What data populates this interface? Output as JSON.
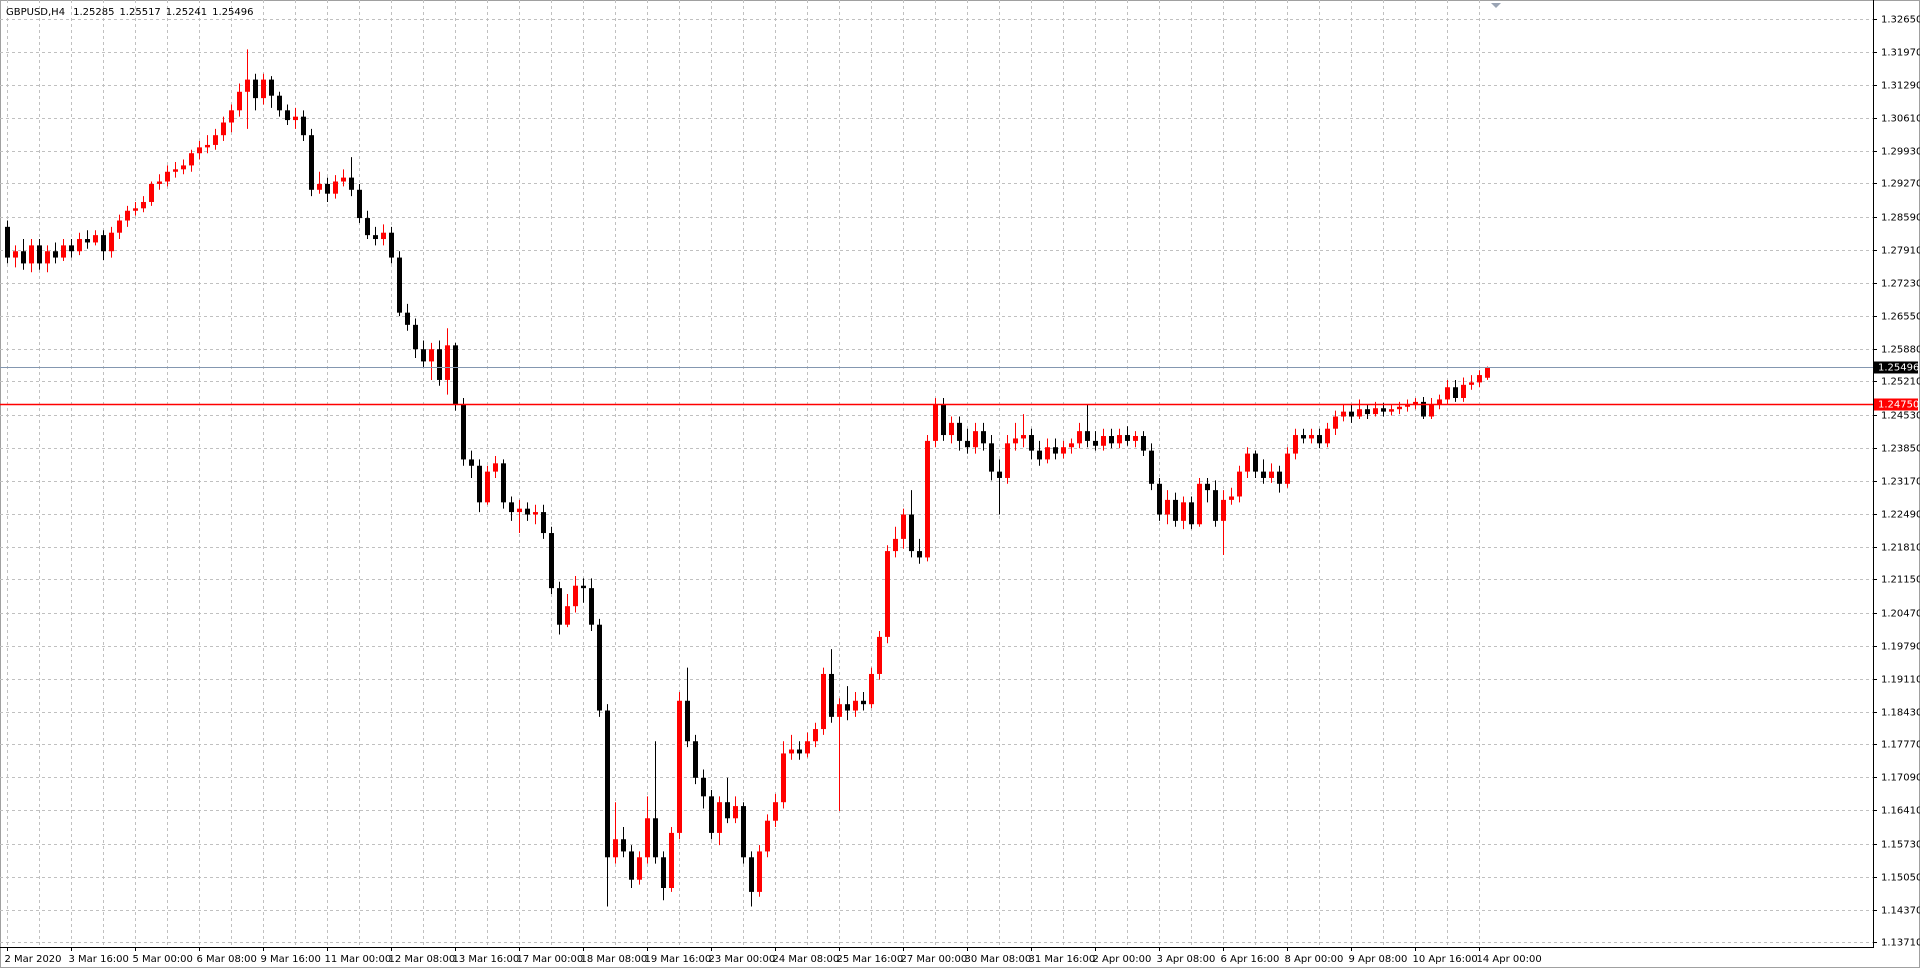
{
  "chart_data": {
    "type": "candlestick",
    "title": "GBPUSD,H4",
    "up_color": "#ff0000",
    "down_color": "#000000",
    "bid_line_color": "#8497b0",
    "grid": true,
    "ylim": [
      1.1361,
      1.3293
    ],
    "yticks": [
      {
        "value": 1.3265,
        "label": "1.32650"
      },
      {
        "value": 1.3197,
        "label": "1.31970"
      },
      {
        "value": 1.3129,
        "label": "1.31290"
      },
      {
        "value": 1.3061,
        "label": "1.30610"
      },
      {
        "value": 1.2993,
        "label": "1.29930"
      },
      {
        "value": 1.2927,
        "label": "1.29270"
      },
      {
        "value": 1.2859,
        "label": "1.28590"
      },
      {
        "value": 1.2791,
        "label": "1.27910"
      },
      {
        "value": 1.2723,
        "label": "1.27230"
      },
      {
        "value": 1.2655,
        "label": "1.26550"
      },
      {
        "value": 1.2588,
        "label": "1.25880"
      },
      {
        "value": 1.2521,
        "label": "1.25210"
      },
      {
        "value": 1.2453,
        "label": "1.24530"
      },
      {
        "value": 1.2385,
        "label": "1.23850"
      },
      {
        "value": 1.2317,
        "label": "1.23170"
      },
      {
        "value": 1.2249,
        "label": "1.22490"
      },
      {
        "value": 1.2181,
        "label": "1.21810"
      },
      {
        "value": 1.2115,
        "label": "1.21150"
      },
      {
        "value": 1.2047,
        "label": "1.20470"
      },
      {
        "value": 1.1979,
        "label": "1.19790"
      },
      {
        "value": 1.1911,
        "label": "1.19110"
      },
      {
        "value": 1.1843,
        "label": "1.18430"
      },
      {
        "value": 1.1777,
        "label": "1.17770"
      },
      {
        "value": 1.1709,
        "label": "1.17090"
      },
      {
        "value": 1.1641,
        "label": "1.16410"
      },
      {
        "value": 1.1573,
        "label": "1.15730"
      },
      {
        "value": 1.1505,
        "label": "1.15050"
      },
      {
        "value": 1.1437,
        "label": "1.14370"
      },
      {
        "value": 1.1371,
        "label": "1.13710"
      }
    ],
    "hline": {
      "value": 1.2475,
      "label": "1.24750",
      "color": "#ff0000"
    },
    "categories": [
      "2 Mar 2020",
      null,
      null,
      null,
      null,
      null,
      null,
      null,
      "3 Mar 16:00",
      null,
      null,
      null,
      null,
      null,
      null,
      null,
      "5 Mar 00:00",
      null,
      null,
      null,
      null,
      null,
      null,
      null,
      "6 Mar 08:00",
      null,
      null,
      null,
      null,
      null,
      null,
      null,
      "9 Mar 16:00",
      null,
      null,
      null,
      null,
      null,
      null,
      null,
      "11 Mar 00:00",
      null,
      null,
      null,
      null,
      null,
      null,
      null,
      "12 Mar 08:00",
      null,
      null,
      null,
      null,
      null,
      null,
      null,
      "13 Mar 16:00",
      null,
      null,
      null,
      null,
      null,
      null,
      null,
      "17 Mar 00:00",
      null,
      null,
      null,
      null,
      null,
      null,
      null,
      "18 Mar 08:00",
      null,
      null,
      null,
      null,
      null,
      null,
      null,
      "19 Mar 16:00",
      null,
      null,
      null,
      null,
      null,
      null,
      null,
      "23 Mar 00:00",
      null,
      null,
      null,
      null,
      null,
      null,
      null,
      "24 Mar 08:00",
      null,
      null,
      null,
      null,
      null,
      null,
      null,
      "25 Mar 16:00",
      null,
      null,
      null,
      null,
      null,
      null,
      null,
      "27 Mar 00:00",
      null,
      null,
      null,
      null,
      null,
      null,
      null,
      "30 Mar 08:00",
      null,
      null,
      null,
      null,
      null,
      null,
      null,
      "31 Mar 16:00",
      null,
      null,
      null,
      null,
      null,
      null,
      null,
      "2 Apr 00:00",
      null,
      null,
      null,
      null,
      null,
      null,
      null,
      "3 Apr 08:00",
      null,
      null,
      null,
      null,
      null,
      null,
      null,
      "6 Apr 16:00",
      null,
      null,
      null,
      null,
      null,
      null,
      null,
      "8 Apr 00:00",
      null,
      null,
      null,
      null,
      null,
      null,
      null,
      "9 Apr 08:00",
      null,
      null,
      null,
      null,
      null,
      null,
      null,
      "10 Apr 16:00",
      null,
      null,
      null,
      null,
      null,
      null,
      null,
      "14 Apr 00:00",
      null
    ],
    "ohlc": [
      [
        1.2838,
        1.2851,
        1.2763,
        1.2775
      ],
      [
        1.2775,
        1.28,
        1.2755,
        1.2788
      ],
      [
        1.2788,
        1.2813,
        1.275,
        1.2763
      ],
      [
        1.2763,
        1.2813,
        1.2745,
        1.28
      ],
      [
        1.28,
        1.2813,
        1.275,
        1.2763
      ],
      [
        1.2763,
        1.28,
        1.2745,
        1.2788
      ],
      [
        1.2788,
        1.2806,
        1.2763,
        1.2775
      ],
      [
        1.2775,
        1.2813,
        1.2768,
        1.28
      ],
      [
        1.28,
        1.2813,
        1.2775,
        1.2788
      ],
      [
        1.2788,
        1.2826,
        1.278,
        1.2813
      ],
      [
        1.2813,
        1.2831,
        1.2793,
        1.2806
      ],
      [
        1.2806,
        1.2831,
        1.28,
        1.2821
      ],
      [
        1.2821,
        1.2831,
        1.277,
        1.2788
      ],
      [
        1.2788,
        1.2838,
        1.2775,
        1.2826
      ],
      [
        1.2826,
        1.2863,
        1.2813,
        1.2851
      ],
      [
        1.2851,
        1.2881,
        1.2838,
        1.2871
      ],
      [
        1.2871,
        1.2889,
        1.2861,
        1.2876
      ],
      [
        1.2876,
        1.2901,
        1.2868,
        1.2889
      ],
      [
        1.2889,
        1.2931,
        1.2881,
        1.2926
      ],
      [
        1.2926,
        1.2946,
        1.2914,
        1.2931
      ],
      [
        1.2931,
        1.2964,
        1.2921,
        1.2951
      ],
      [
        1.2951,
        1.2971,
        1.2939,
        1.2956
      ],
      [
        1.2956,
        1.2976,
        1.2946,
        1.2964
      ],
      [
        1.2964,
        1.2996,
        1.2951,
        1.2989
      ],
      [
        1.2989,
        1.3014,
        1.2976,
        1.3001
      ],
      [
        1.3001,
        1.3026,
        1.2989,
        1.3006
      ],
      [
        1.3006,
        1.3039,
        1.2996,
        1.3026
      ],
      [
        1.3026,
        1.3064,
        1.3014,
        1.3052
      ],
      [
        1.3052,
        1.3089,
        1.3032,
        1.3077
      ],
      [
        1.3077,
        1.3132,
        1.3064,
        1.3115
      ],
      [
        1.3115,
        1.3202,
        1.3039,
        1.314
      ],
      [
        1.314,
        1.3152,
        1.3077,
        1.3102
      ],
      [
        1.3102,
        1.3152,
        1.3089,
        1.314
      ],
      [
        1.314,
        1.3147,
        1.3082,
        1.3107
      ],
      [
        1.3107,
        1.3115,
        1.3064,
        1.3077
      ],
      [
        1.3077,
        1.3089,
        1.3047,
        1.3057
      ],
      [
        1.3057,
        1.3082,
        1.3039,
        1.3064
      ],
      [
        1.3064,
        1.3077,
        1.3014,
        1.3026
      ],
      [
        1.3026,
        1.3039,
        1.2901,
        1.2914
      ],
      [
        1.2914,
        1.2951,
        1.2906,
        1.2926
      ],
      [
        1.2926,
        1.2939,
        1.2889,
        1.2906
      ],
      [
        1.2906,
        1.2944,
        1.2896,
        1.2931
      ],
      [
        1.2931,
        1.2956,
        1.2921,
        1.2939
      ],
      [
        1.2939,
        1.2981,
        1.2901,
        1.2914
      ],
      [
        1.2914,
        1.2926,
        1.2846,
        1.2856
      ],
      [
        1.2856,
        1.2871,
        1.2813,
        1.2821
      ],
      [
        1.2821,
        1.2838,
        1.28,
        1.2813
      ],
      [
        1.2813,
        1.2843,
        1.28,
        1.2826
      ],
      [
        1.2826,
        1.2838,
        1.2763,
        1.2775
      ],
      [
        1.2775,
        1.2788,
        1.2655,
        1.2662
      ],
      [
        1.2662,
        1.268,
        1.2625,
        1.2637
      ],
      [
        1.2637,
        1.265,
        1.2569,
        1.2587
      ],
      [
        1.2587,
        1.2605,
        1.2549,
        1.2562
      ],
      [
        1.2562,
        1.26,
        1.2524,
        1.2587
      ],
      [
        1.2587,
        1.2605,
        1.2512,
        1.2524
      ],
      [
        1.2524,
        1.263,
        1.2494,
        1.2595
      ],
      [
        1.2595,
        1.26,
        1.2461,
        1.2474
      ],
      [
        1.2474,
        1.2487,
        1.2348,
        1.2361
      ],
      [
        1.2361,
        1.2379,
        1.2323,
        1.2348
      ],
      [
        1.2348,
        1.2361,
        1.2253,
        1.2273
      ],
      [
        1.2273,
        1.2348,
        1.2268,
        1.2336
      ],
      [
        1.2336,
        1.2368,
        1.2323,
        1.2353
      ],
      [
        1.2353,
        1.2361,
        1.226,
        1.2273
      ],
      [
        1.2273,
        1.2285,
        1.2235,
        1.2253
      ],
      [
        1.2253,
        1.2278,
        1.221,
        1.226
      ],
      [
        1.226,
        1.2273,
        1.2235,
        1.2248
      ],
      [
        1.2248,
        1.2268,
        1.2228,
        1.2253
      ],
      [
        1.2253,
        1.2268,
        1.2198,
        1.221
      ],
      [
        1.221,
        1.2223,
        1.2085,
        1.2097
      ],
      [
        1.2097,
        1.211,
        1.2002,
        1.2022
      ],
      [
        1.2022,
        1.2085,
        1.2017,
        1.206
      ],
      [
        1.206,
        1.2122,
        1.2047,
        1.2102
      ],
      [
        1.2102,
        1.2117,
        1.2067,
        1.2097
      ],
      [
        1.2097,
        1.2117,
        1.2009,
        1.2022
      ],
      [
        1.2022,
        1.2034,
        1.1833,
        1.1846
      ],
      [
        1.1846,
        1.1859,
        1.1444,
        1.1545
      ],
      [
        1.1545,
        1.1658,
        1.1532,
        1.1582
      ],
      [
        1.1582,
        1.1607,
        1.1545,
        1.1557
      ],
      [
        1.1557,
        1.157,
        1.1482,
        1.1499
      ],
      [
        1.1499,
        1.1557,
        1.1489,
        1.1545
      ],
      [
        1.1545,
        1.167,
        1.1532,
        1.1625
      ],
      [
        1.1625,
        1.1783,
        1.1532,
        1.1545
      ],
      [
        1.1545,
        1.1557,
        1.1457,
        1.1482
      ],
      [
        1.1482,
        1.1607,
        1.1474,
        1.1595
      ],
      [
        1.1595,
        1.1884,
        1.1582,
        1.1866
      ],
      [
        1.1866,
        1.1934,
        1.1771,
        1.1783
      ],
      [
        1.1783,
        1.1796,
        1.1695,
        1.1708
      ],
      [
        1.1708,
        1.1725,
        1.1645,
        1.167
      ],
      [
        1.167,
        1.1683,
        1.1582,
        1.1595
      ],
      [
        1.1595,
        1.167,
        1.157,
        1.1658
      ],
      [
        1.1658,
        1.1708,
        1.1615,
        1.1625
      ],
      [
        1.1625,
        1.167,
        1.1615,
        1.165
      ],
      [
        1.165,
        1.1658,
        1.1532,
        1.1545
      ],
      [
        1.1545,
        1.1557,
        1.1444,
        1.1474
      ],
      [
        1.1474,
        1.157,
        1.1464,
        1.1557
      ],
      [
        1.1557,
        1.1633,
        1.1545,
        1.162
      ],
      [
        1.162,
        1.1675,
        1.1607,
        1.1658
      ],
      [
        1.1658,
        1.1783,
        1.1645,
        1.1758
      ],
      [
        1.1758,
        1.1796,
        1.1745,
        1.1766
      ],
      [
        1.1766,
        1.1783,
        1.1745,
        1.1758
      ],
      [
        1.1758,
        1.1801,
        1.175,
        1.1783
      ],
      [
        1.1783,
        1.1821,
        1.1771,
        1.1808
      ],
      [
        1.1808,
        1.1934,
        1.1796,
        1.1921
      ],
      [
        1.1921,
        1.1972,
        1.1821,
        1.1833
      ],
      [
        1.1833,
        1.1871,
        1.164,
        1.1859
      ],
      [
        1.1859,
        1.1896,
        1.1826,
        1.1846
      ],
      [
        1.1846,
        1.1884,
        1.1833,
        1.1866
      ],
      [
        1.1866,
        1.1884,
        1.1846,
        1.1859
      ],
      [
        1.1859,
        1.1934,
        1.1851,
        1.1921
      ],
      [
        1.1921,
        1.2009,
        1.1909,
        1.1997
      ],
      [
        1.1997,
        1.2185,
        1.1984,
        1.2173
      ],
      [
        1.2173,
        1.2223,
        1.216,
        1.2198
      ],
      [
        1.2198,
        1.226,
        1.2178,
        1.2248
      ],
      [
        1.2248,
        1.2298,
        1.216,
        1.2173
      ],
      [
        1.2173,
        1.2198,
        1.2147,
        1.216
      ],
      [
        1.216,
        1.2411,
        1.2152,
        1.2399
      ],
      [
        1.2399,
        1.2487,
        1.2386,
        1.2474
      ],
      [
        1.2474,
        1.2487,
        1.2399,
        1.2411
      ],
      [
        1.2411,
        1.2449,
        1.2394,
        1.2436
      ],
      [
        1.2436,
        1.2449,
        1.2379,
        1.2399
      ],
      [
        1.2399,
        1.2424,
        1.2373,
        1.2386
      ],
      [
        1.2386,
        1.2436,
        1.2373,
        1.2419
      ],
      [
        1.2419,
        1.2436,
        1.2379,
        1.2394
      ],
      [
        1.2394,
        1.2411,
        1.2318,
        1.2336
      ],
      [
        1.2336,
        1.2361,
        1.2248,
        1.2323
      ],
      [
        1.2323,
        1.2411,
        1.2311,
        1.2394
      ],
      [
        1.2394,
        1.2436,
        1.2379,
        1.2404
      ],
      [
        1.2404,
        1.2454,
        1.2386,
        1.2411
      ],
      [
        1.2411,
        1.2424,
        1.2361,
        1.2379
      ],
      [
        1.2379,
        1.2399,
        1.2348,
        1.2361
      ],
      [
        1.2361,
        1.2404,
        1.2353,
        1.2386
      ],
      [
        1.2386,
        1.2404,
        1.2361,
        1.2373
      ],
      [
        1.2373,
        1.2399,
        1.2363,
        1.2386
      ],
      [
        1.2386,
        1.2404,
        1.2373,
        1.2394
      ],
      [
        1.2394,
        1.2436,
        1.2384,
        1.2419
      ],
      [
        1.2419,
        1.2474,
        1.2386,
        1.2399
      ],
      [
        1.2399,
        1.2419,
        1.2379,
        1.2389
      ],
      [
        1.2389,
        1.2424,
        1.2379,
        1.2409
      ],
      [
        1.2409,
        1.2424,
        1.2384,
        1.2394
      ],
      [
        1.2394,
        1.2424,
        1.2384,
        1.2411
      ],
      [
        1.2411,
        1.2429,
        1.2389,
        1.2399
      ],
      [
        1.2399,
        1.2419,
        1.2386,
        1.2409
      ],
      [
        1.2409,
        1.2419,
        1.2368,
        1.2379
      ],
      [
        1.2379,
        1.2394,
        1.2298,
        1.2311
      ],
      [
        1.2311,
        1.2323,
        1.2235,
        1.2248
      ],
      [
        1.2248,
        1.2298,
        1.2228,
        1.2278
      ],
      [
        1.2278,
        1.2293,
        1.2223,
        1.2235
      ],
      [
        1.2235,
        1.2285,
        1.2218,
        1.2273
      ],
      [
        1.2273,
        1.2285,
        1.2218,
        1.2228
      ],
      [
        1.2228,
        1.2323,
        1.2223,
        1.2311
      ],
      [
        1.2311,
        1.2323,
        1.2273,
        1.2298
      ],
      [
        1.2298,
        1.2318,
        1.2223,
        1.2235
      ],
      [
        1.2235,
        1.2298,
        1.2165,
        1.2278
      ],
      [
        1.2278,
        1.2303,
        1.2268,
        1.2285
      ],
      [
        1.2285,
        1.2348,
        1.2273,
        1.2336
      ],
      [
        1.2336,
        1.2386,
        1.2323,
        1.2373
      ],
      [
        1.2373,
        1.2379,
        1.2323,
        1.2336
      ],
      [
        1.2336,
        1.2361,
        1.2311,
        1.2323
      ],
      [
        1.2323,
        1.2353,
        1.2313,
        1.2336
      ],
      [
        1.2336,
        1.2348,
        1.2293,
        1.2311
      ],
      [
        1.2311,
        1.2386,
        1.2303,
        1.2373
      ],
      [
        1.2373,
        1.2424,
        1.2361,
        1.2411
      ],
      [
        1.2411,
        1.2424,
        1.2394,
        1.2404
      ],
      [
        1.2404,
        1.2424,
        1.2394,
        1.2411
      ],
      [
        1.2411,
        1.2424,
        1.2384,
        1.2394
      ],
      [
        1.2394,
        1.2436,
        1.2386,
        1.2424
      ],
      [
        1.2424,
        1.2461,
        1.2411,
        1.2449
      ],
      [
        1.2449,
        1.2474,
        1.2439,
        1.2459
      ],
      [
        1.2459,
        1.2474,
        1.2436,
        1.2449
      ],
      [
        1.2449,
        1.2484,
        1.2444,
        1.2464
      ],
      [
        1.2464,
        1.2474,
        1.2444,
        1.2454
      ],
      [
        1.2454,
        1.2479,
        1.2449,
        1.2466
      ],
      [
        1.2466,
        1.2477,
        1.2449,
        1.2459
      ],
      [
        1.2459,
        1.2474,
        1.2451,
        1.2464
      ],
      [
        1.2464,
        1.2479,
        1.2454,
        1.2469
      ],
      [
        1.2469,
        1.2484,
        1.2459,
        1.2474
      ],
      [
        1.2474,
        1.2487,
        1.2464,
        1.2479
      ],
      [
        1.2479,
        1.2489,
        1.2444,
        1.2449
      ],
      [
        1.2449,
        1.2487,
        1.2444,
        1.2474
      ],
      [
        1.2474,
        1.2494,
        1.2464,
        1.2484
      ],
      [
        1.2484,
        1.2524,
        1.2474,
        1.2509
      ],
      [
        1.2509,
        1.2524,
        1.2479,
        1.2487
      ],
      [
        1.2487,
        1.2529,
        1.2479,
        1.2514
      ],
      [
        1.2514,
        1.2534,
        1.2504,
        1.2519
      ],
      [
        1.2519,
        1.2544,
        1.2509,
        1.2534
      ],
      [
        1.25285,
        1.25517,
        1.25241,
        1.25496
      ]
    ]
  }
}
